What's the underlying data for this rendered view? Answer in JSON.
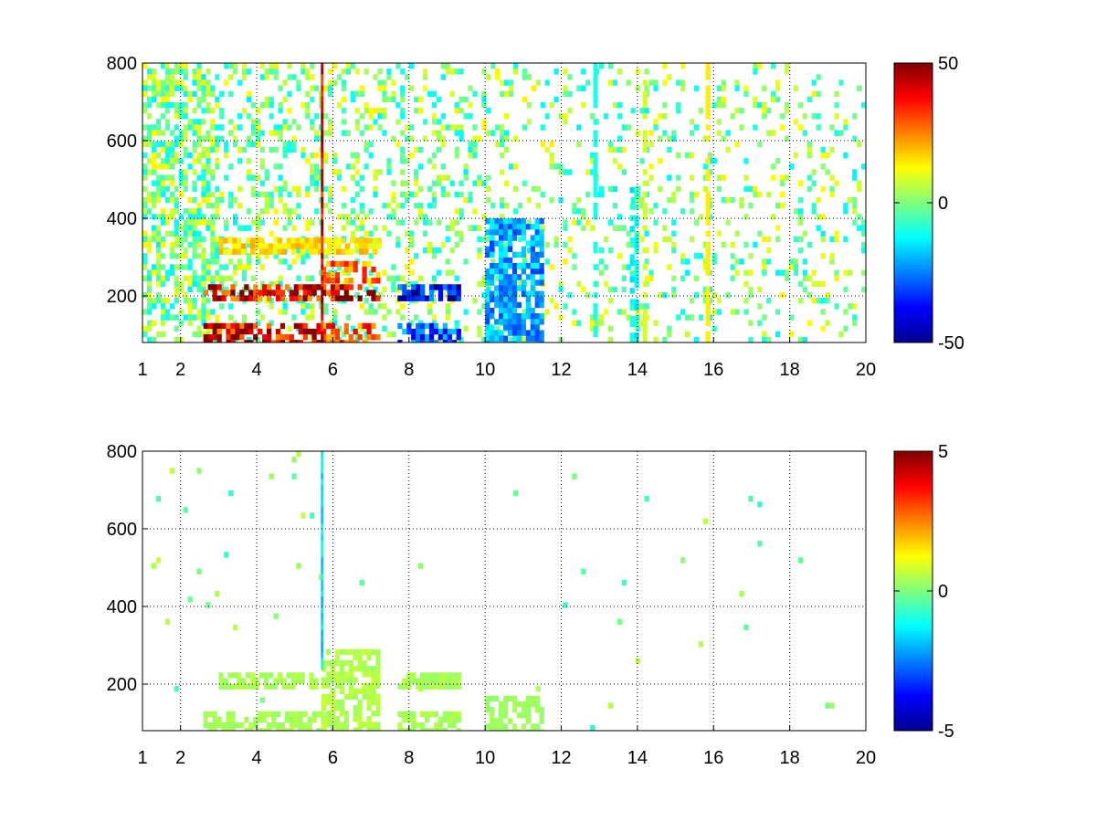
{
  "chart_data": [
    {
      "type": "heatmap",
      "title": "",
      "xlabel": "",
      "ylabel": "",
      "xlim": [
        1,
        20
      ],
      "ylim": [
        80,
        800
      ],
      "grid": true,
      "x_ticks": [
        1,
        2,
        4,
        6,
        8,
        10,
        12,
        14,
        16,
        18,
        20
      ],
      "y_ticks": [
        200,
        400,
        600,
        800
      ],
      "colorbar": {
        "min": -50,
        "max": 50,
        "ticks": [
          -50,
          0,
          50
        ],
        "colormap": "jet"
      },
      "color_range": [
        -50,
        50
      ],
      "bands": [
        {
          "x": [
            2.6,
            5.7
          ],
          "y": [
            80,
            130
          ],
          "level": 42
        },
        {
          "x": [
            2.6,
            5.7
          ],
          "y": [
            190,
            230
          ],
          "level": 38
        },
        {
          "x": [
            5.7,
            7.2
          ],
          "y": [
            80,
            130
          ],
          "level": 30
        },
        {
          "x": [
            5.7,
            7.2
          ],
          "y": [
            190,
            230
          ],
          "level": 45
        },
        {
          "x": [
            5.7,
            7.2
          ],
          "y": [
            240,
            290
          ],
          "level": 25
        },
        {
          "x": [
            7.7,
            9.3
          ],
          "y": [
            190,
            230
          ],
          "level": -40
        },
        {
          "x": [
            7.7,
            9.3
          ],
          "y": [
            80,
            130
          ],
          "level": -30
        },
        {
          "x": [
            3.0,
            7.2
          ],
          "y": [
            320,
            350
          ],
          "level": 15
        },
        {
          "x": [
            10.0,
            11.5
          ],
          "y": [
            80,
            400
          ],
          "level": -22
        },
        {
          "x": [
            13.8,
            13.95
          ],
          "y": [
            80,
            480
          ],
          "level": -12
        }
      ],
      "columns": [
        {
          "x": 5.72,
          "y": [
            80,
            800
          ],
          "level": 40
        }
      ],
      "columns_of_bars": [
        {
          "x": 12.9,
          "level": -10
        },
        {
          "x": 14.2,
          "level": 8
        },
        {
          "x": 15.85,
          "level": 14
        }
      ]
    },
    {
      "type": "heatmap",
      "title": "",
      "xlabel": "",
      "ylabel": "",
      "xlim": [
        1,
        20
      ],
      "ylim": [
        80,
        800
      ],
      "grid": true,
      "x_ticks": [
        1,
        2,
        4,
        6,
        8,
        10,
        12,
        14,
        16,
        18,
        20
      ],
      "y_ticks": [
        200,
        400,
        600,
        800
      ],
      "colorbar": {
        "min": -5,
        "max": 5,
        "ticks": [
          -5,
          0,
          5
        ],
        "colormap": "jet"
      },
      "color_range": [
        -5,
        5
      ],
      "bands": [
        {
          "x": [
            2.6,
            5.7
          ],
          "y": [
            80,
            130
          ],
          "level": 0.4
        },
        {
          "x": [
            3.0,
            5.7
          ],
          "y": [
            190,
            230
          ],
          "level": 0.4
        },
        {
          "x": [
            5.7,
            7.2
          ],
          "y": [
            80,
            290
          ],
          "level": 0.5
        },
        {
          "x": [
            7.7,
            9.3
          ],
          "y": [
            80,
            130
          ],
          "level": 0.4
        },
        {
          "x": [
            7.7,
            9.3
          ],
          "y": [
            190,
            230
          ],
          "level": 0.4
        },
        {
          "x": [
            10.0,
            11.5
          ],
          "y": [
            80,
            170
          ],
          "level": 0.3
        }
      ],
      "columns": [
        {
          "x": 5.72,
          "y": [
            250,
            800
          ],
          "level": -1.5
        }
      ],
      "columns_of_bars": []
    }
  ]
}
